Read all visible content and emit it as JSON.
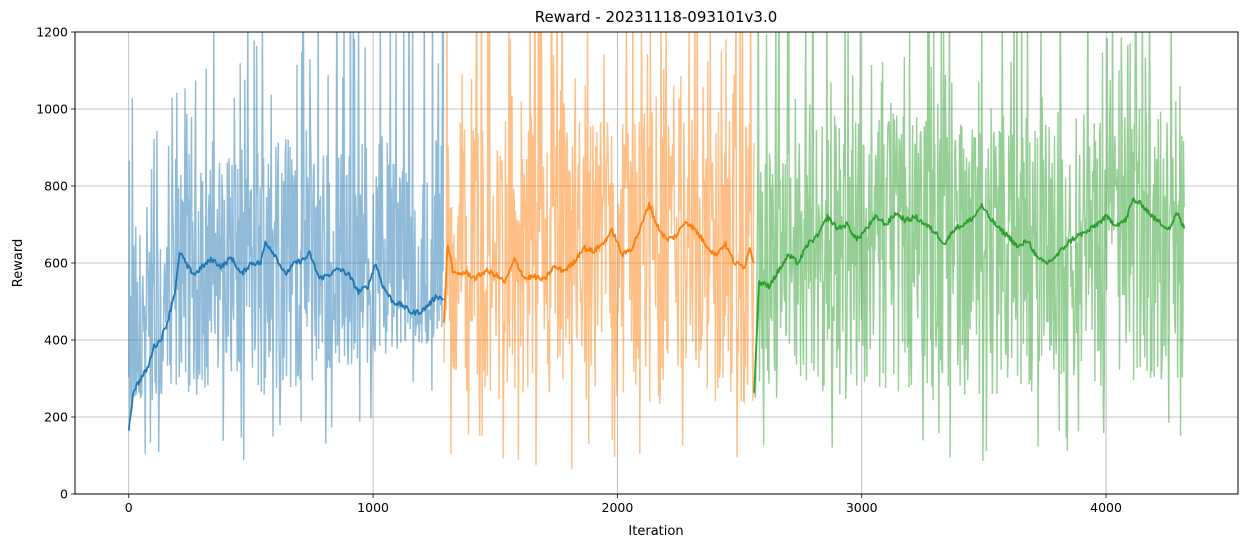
{
  "chart_data": {
    "type": "line",
    "title": "Reward - 20231118-093101v3.0",
    "xlabel": "Iteration",
    "ylabel": "Reward",
    "xlim": [
      -220,
      4540
    ],
    "ylim": [
      0,
      1200
    ],
    "xticks": [
      0,
      1000,
      2000,
      3000,
      4000
    ],
    "yticks": [
      0,
      200,
      400,
      600,
      800,
      1000,
      1200
    ],
    "grid": true,
    "series": [
      {
        "color": "#1f77b4",
        "x_range": [
          0,
          1290
        ],
        "raw_band": {
          "low": [
            240,
            260,
            400
          ],
          "high": [
            900,
            1200,
            1200
          ]
        },
        "smoothed": [
          [
            0,
            170
          ],
          [
            20,
            270
          ],
          [
            50,
            300
          ],
          [
            80,
            330
          ],
          [
            100,
            380
          ],
          [
            130,
            400
          ],
          [
            160,
            450
          ],
          [
            190,
            530
          ],
          [
            210,
            630
          ],
          [
            240,
            590
          ],
          [
            270,
            570
          ],
          [
            300,
            590
          ],
          [
            340,
            610
          ],
          [
            380,
            590
          ],
          [
            420,
            615
          ],
          [
            460,
            570
          ],
          [
            500,
            600
          ],
          [
            540,
            600
          ],
          [
            560,
            655
          ],
          [
            600,
            620
          ],
          [
            640,
            570
          ],
          [
            680,
            600
          ],
          [
            720,
            610
          ],
          [
            740,
            625
          ],
          [
            780,
            560
          ],
          [
            820,
            570
          ],
          [
            860,
            585
          ],
          [
            900,
            570
          ],
          [
            940,
            525
          ],
          [
            980,
            540
          ],
          [
            1010,
            600
          ],
          [
            1040,
            540
          ],
          [
            1080,
            500
          ],
          [
            1120,
            490
          ],
          [
            1160,
            470
          ],
          [
            1200,
            475
          ],
          [
            1240,
            500
          ],
          [
            1260,
            515
          ],
          [
            1290,
            505
          ]
        ]
      },
      {
        "color": "#ff7f0e",
        "x_range": [
          1290,
          2560
        ],
        "raw_band": {
          "low": [
            240,
            230,
            220
          ],
          "high": [
            1200,
            1200,
            1200
          ]
        },
        "smoothed": [
          [
            1290,
            450
          ],
          [
            1305,
            650
          ],
          [
            1330,
            570
          ],
          [
            1380,
            575
          ],
          [
            1420,
            560
          ],
          [
            1460,
            580
          ],
          [
            1500,
            570
          ],
          [
            1540,
            550
          ],
          [
            1580,
            610
          ],
          [
            1620,
            560
          ],
          [
            1660,
            565
          ],
          [
            1700,
            555
          ],
          [
            1740,
            590
          ],
          [
            1780,
            580
          ],
          [
            1820,
            600
          ],
          [
            1860,
            640
          ],
          [
            1900,
            630
          ],
          [
            1940,
            650
          ],
          [
            1980,
            685
          ],
          [
            2020,
            620
          ],
          [
            2060,
            640
          ],
          [
            2100,
            700
          ],
          [
            2130,
            755
          ],
          [
            2160,
            700
          ],
          [
            2200,
            660
          ],
          [
            2240,
            670
          ],
          [
            2280,
            710
          ],
          [
            2320,
            685
          ],
          [
            2360,
            650
          ],
          [
            2400,
            620
          ],
          [
            2440,
            650
          ],
          [
            2480,
            600
          ],
          [
            2520,
            590
          ],
          [
            2540,
            640
          ],
          [
            2560,
            600
          ]
        ]
      },
      {
        "color": "#2ca02c",
        "x_range": [
          2560,
          4320
        ],
        "raw_band": {
          "low": [
            250,
            240,
            300
          ],
          "high": [
            1200,
            1200,
            1200
          ]
        },
        "smoothed": [
          [
            2560,
            270
          ],
          [
            2580,
            550
          ],
          [
            2620,
            540
          ],
          [
            2660,
            580
          ],
          [
            2700,
            620
          ],
          [
            2740,
            600
          ],
          [
            2780,
            650
          ],
          [
            2820,
            670
          ],
          [
            2860,
            720
          ],
          [
            2900,
            690
          ],
          [
            2940,
            700
          ],
          [
            2980,
            660
          ],
          [
            3020,
            690
          ],
          [
            3060,
            720
          ],
          [
            3100,
            700
          ],
          [
            3140,
            730
          ],
          [
            3180,
            710
          ],
          [
            3220,
            720
          ],
          [
            3260,
            700
          ],
          [
            3300,
            680
          ],
          [
            3340,
            650
          ],
          [
            3380,
            690
          ],
          [
            3420,
            700
          ],
          [
            3460,
            720
          ],
          [
            3490,
            750
          ],
          [
            3520,
            720
          ],
          [
            3560,
            690
          ],
          [
            3600,
            670
          ],
          [
            3640,
            640
          ],
          [
            3680,
            660
          ],
          [
            3720,
            610
          ],
          [
            3760,
            600
          ],
          [
            3800,
            620
          ],
          [
            3840,
            650
          ],
          [
            3880,
            670
          ],
          [
            3920,
            680
          ],
          [
            3960,
            700
          ],
          [
            4000,
            720
          ],
          [
            4040,
            700
          ],
          [
            4080,
            710
          ],
          [
            4110,
            765
          ],
          [
            4150,
            750
          ],
          [
            4190,
            720
          ],
          [
            4230,
            700
          ],
          [
            4260,
            690
          ],
          [
            4290,
            730
          ],
          [
            4320,
            690
          ]
        ]
      }
    ]
  }
}
